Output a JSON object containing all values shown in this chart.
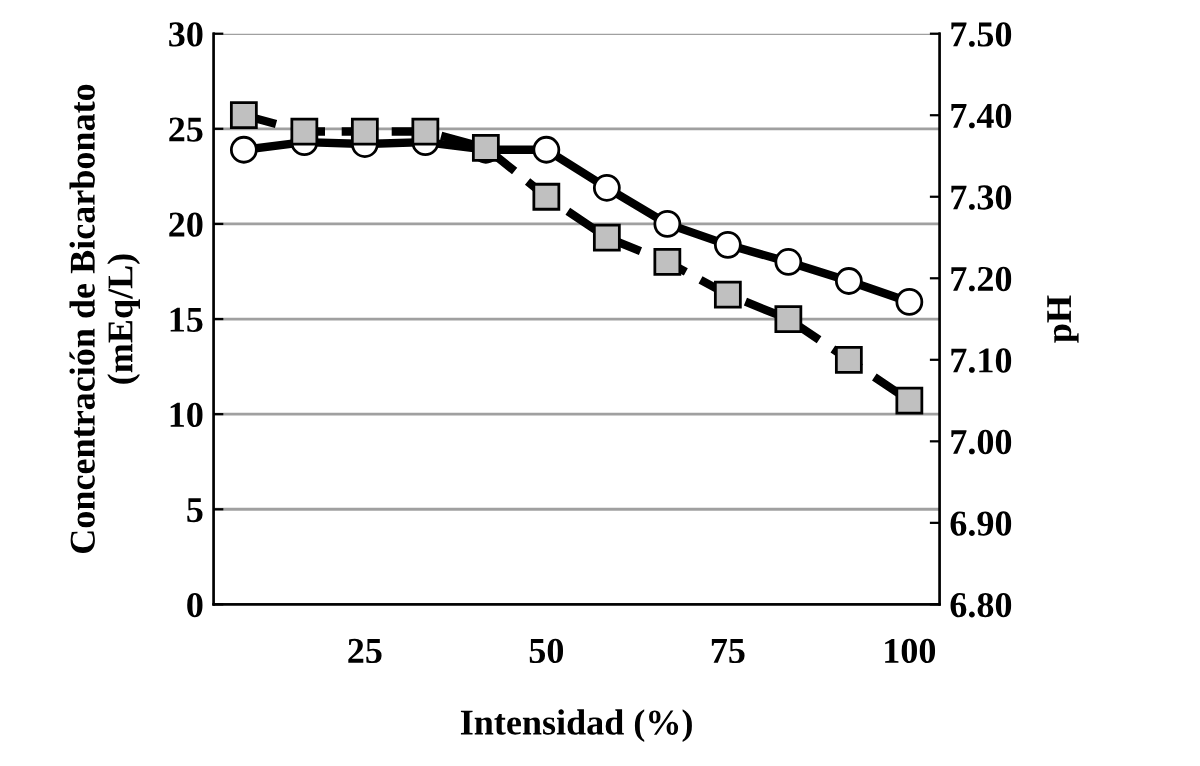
{
  "chart_data": {
    "type": "line",
    "xlabel": "Intensidad (%)",
    "ylabel": "Concentración de Bicarbonato\n(mEq/L)",
    "y2label": "pH",
    "categories": [
      null,
      null,
      "25",
      null,
      null,
      "50",
      null,
      null,
      "75",
      null,
      null,
      "100"
    ],
    "series": [
      {
        "color": "#000000",
        "marker": "circle",
        "line_style": "solid",
        "values": [
          23.9,
          24.3,
          24.2,
          24.3,
          23.9,
          23.9,
          21.9,
          20.0,
          18.9,
          18.0,
          17.0,
          15.9
        ]
      },
      {
        "color": "#000000",
        "marker": "square",
        "line_style": "dashed",
        "axis": "y2",
        "values": [
          7.4,
          7.38,
          7.38,
          7.38,
          7.36,
          7.3,
          7.25,
          7.22,
          7.18,
          7.15,
          7.1,
          7.05
        ]
      }
    ],
    "ylim": [
      0,
      30
    ],
    "yticks": [
      0,
      5,
      10,
      15,
      20,
      25,
      30
    ],
    "y2lim": [
      6.8,
      7.5
    ],
    "y2ticks": [
      {
        "value": 6.8,
        "label": "6.80"
      },
      {
        "value": 6.9,
        "label": "6.90"
      },
      {
        "value": 7.0,
        "label": "7.00"
      },
      {
        "value": 7.1,
        "label": "7.10"
      },
      {
        "value": 7.2,
        "label": "7.20"
      },
      {
        "value": 7.3,
        "label": "7.30"
      },
      {
        "value": 7.4,
        "label": "7.40"
      },
      {
        "value": 7.5,
        "label": "7.50"
      }
    ],
    "grid": "y",
    "legend": false
  }
}
